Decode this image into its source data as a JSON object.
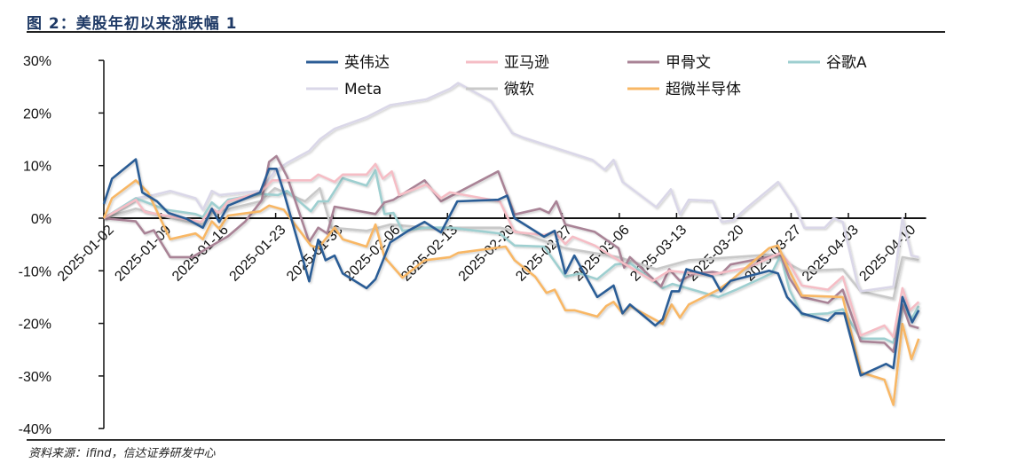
{
  "title": "图 2：美股年初以来涨跌幅 1",
  "source": "资料来源：ifind，信达证券研发中心",
  "chart_data": {
    "type": "line",
    "title": "美股年初以来涨跌幅",
    "xlabel": "",
    "ylabel": "",
    "x_unit": "days since 2025-01-02",
    "ylim": [
      -40,
      30
    ],
    "y_ticks": [
      30,
      20,
      10,
      0,
      -10,
      -20,
      -30,
      -40
    ],
    "y_tick_labels": [
      "30%",
      "20%",
      "10%",
      "0%",
      "-10%",
      "-20%",
      "-30%",
      "-40%"
    ],
    "x_ticks": [
      0,
      7,
      14,
      21,
      28,
      35,
      42,
      49,
      56,
      63,
      70,
      77,
      84,
      91,
      98
    ],
    "x_tick_labels": [
      "2025-01-02",
      "2025-01-09",
      "2025-01-16",
      "2025-01-23",
      "2025-01-30",
      "2025-02-06",
      "2025-02-13",
      "2025-02-20",
      "2025-02-27",
      "2025-03-06",
      "2025-03-13",
      "2025-03-20",
      "2025-03-27",
      "2025-04-03",
      "2025-04-10"
    ],
    "xlim": [
      0,
      100.5
    ],
    "grid": false,
    "legend_placement": "top",
    "series": [
      {
        "name": "微软",
        "color": "#C9C9C9",
        "x": [
          0,
          3.9,
          10.1,
          12.1,
          13.2,
          19.1,
          20.9,
          24.6,
          26.4,
          27.8,
          32.1,
          35,
          39.4,
          48.4,
          50.2,
          56.4,
          62.9,
          67.5,
          71.5,
          81.6,
          85.3,
          90.3,
          92.5,
          96.5,
          97.6,
          99.6
        ],
        "y": [
          0,
          1.8,
          -0.7,
          -1.2,
          1,
          3.2,
          5.7,
          3.2,
          5.7,
          -1.8,
          -2.4,
          -1.2,
          -1.8,
          -1.8,
          -2.4,
          -5.7,
          -7.4,
          -9.7,
          -8,
          -6.9,
          -10,
          -9.7,
          -13.9,
          -15.3,
          -7.4,
          -8
        ]
      },
      {
        "name": "Meta",
        "color": "#DAD7E8",
        "x": [
          0,
          3.9,
          6.1,
          8.1,
          11.2,
          12.1,
          13.2,
          14.1,
          19.1,
          20.9,
          22.4,
          25.1,
          26.4,
          28.2,
          32.1,
          35,
          39.4,
          42.3,
          43.3,
          47.3,
          49.9,
          51.3,
          59.7,
          61.2,
          62.3,
          63.4,
          67.5,
          69.3,
          70.4,
          71.5,
          74.4,
          75.5,
          76.9,
          78.7,
          82.4,
          84.5,
          85.6,
          88.1,
          89.2,
          90.3,
          92.1,
          92.5,
          96.5,
          97.6,
          98.7,
          99.6
        ],
        "y": [
          0,
          3.8,
          4.4,
          5.2,
          3.8,
          1.6,
          5.2,
          4.4,
          5.2,
          8.9,
          10.5,
          12.8,
          15,
          17,
          19.2,
          21.5,
          22.6,
          24.6,
          25.7,
          22.3,
          16.2,
          15.3,
          11.1,
          9.2,
          11.1,
          6.9,
          2.1,
          5.5,
          0.7,
          3.5,
          3.3,
          -0.7,
          -0.4,
          2.1,
          6.9,
          2.1,
          -1.8,
          -1.8,
          0,
          -0.7,
          -12.5,
          -13.9,
          -13,
          0,
          -7.1,
          -7.4
        ]
      },
      {
        "name": "谷歌A",
        "color": "#9ECFD0",
        "x": [
          0,
          3.9,
          7.6,
          11.2,
          12.1,
          13.2,
          14.1,
          15.2,
          19.1,
          21.3,
          22.4,
          25.3,
          26.2,
          27.4,
          29.2,
          32.1,
          33.2,
          34.3,
          35.4,
          36.5,
          39.4,
          42.3,
          48.4,
          50.2,
          53.8,
          56.4,
          58.2,
          60.3,
          62.5,
          64.3,
          68.3,
          69.5,
          75.1,
          77.3,
          81.6,
          82.7,
          83.8,
          85.3,
          88.5,
          90.3,
          92.5,
          95.4,
          96.5,
          97.6,
          98.7,
          99.6
        ],
        "y": [
          0,
          3.8,
          1.6,
          0.8,
          0.2,
          3,
          1.8,
          3.5,
          4.6,
          4.4,
          5.2,
          1.3,
          3.2,
          3.2,
          7.6,
          6.2,
          9.1,
          0.8,
          1,
          -2.4,
          -1.8,
          -1.8,
          -2.9,
          -5.2,
          -5.4,
          -11.1,
          -10.5,
          -11.6,
          -8.8,
          -8.5,
          -13.3,
          -12.5,
          -15,
          -13.6,
          -10.5,
          -7.1,
          -13.6,
          -18.4,
          -18.1,
          -17.3,
          -22.9,
          -22.9,
          -23.7,
          -16.4,
          -19.2,
          -16.7
        ]
      },
      {
        "name": "甲骨文",
        "color": "#A98396",
        "x": [
          0,
          3.9,
          5,
          6.1,
          8.1,
          10.8,
          15.2,
          17.3,
          19.3,
          20.2,
          21.1,
          22.4,
          25.1,
          26.2,
          27.3,
          28.2,
          33.2,
          34.3,
          35.4,
          39.2,
          41.2,
          48.2,
          50.2,
          53.3,
          54.4,
          55.3,
          56.4,
          60,
          62.9,
          63.6,
          64.3,
          68.1,
          69.1,
          70.4,
          72.3,
          74.4,
          75.5,
          76.6,
          80.2,
          82.7,
          83.8,
          85.3,
          88.5,
          90.3,
          92.5,
          95.4,
          96.5,
          97.6,
          98.5,
          99.6
        ],
        "y": [
          0,
          -0.6,
          -2.9,
          -2.3,
          -7.4,
          -7.4,
          -3.4,
          -0.6,
          3.4,
          10.7,
          11.8,
          7.9,
          -4.5,
          -1.8,
          -2.9,
          2.2,
          0.8,
          3,
          3.5,
          7.2,
          3.2,
          8.9,
          0.7,
          1.8,
          1,
          3.2,
          -1.2,
          -2.6,
          -5.7,
          -9.4,
          -7.4,
          -13,
          -9.7,
          -11.9,
          -10.5,
          -10.2,
          -10.5,
          -8.8,
          -7.7,
          -6.9,
          -11.4,
          -15,
          -16.1,
          -13.6,
          -23.4,
          -23.7,
          -25.4,
          -16.4,
          -20.4,
          -20.9
        ]
      },
      {
        "name": "亚马逊",
        "color": "#F5BDC5",
        "x": [
          0,
          3.9,
          5,
          11.9,
          13.2,
          14.1,
          15.2,
          19.1,
          20.6,
          25.3,
          26.2,
          28.2,
          29.2,
          32.1,
          33.2,
          34.1,
          35.2,
          36.1,
          39.4,
          41.2,
          42.3,
          48.4,
          50.2,
          53.8,
          55.1,
          56.4,
          57.3,
          60,
          62.9,
          67.1,
          69.1,
          74,
          78.7,
          82.7,
          83.8,
          85.3,
          88.5,
          90.3,
          92.5,
          95.4,
          96.5,
          97.6,
          98.5,
          99.6
        ],
        "y": [
          0,
          3.5,
          1.2,
          -0.7,
          1.8,
          1,
          3.2,
          4.9,
          7.2,
          7.2,
          8.3,
          6.9,
          8.3,
          8.3,
          10.3,
          7.5,
          8.9,
          4.4,
          6.4,
          3.8,
          4.9,
          3.2,
          -2.6,
          -3.2,
          -2.6,
          -4.9,
          -3.5,
          -5.2,
          -8,
          -11.9,
          -10,
          -10.8,
          -9.4,
          -6.6,
          -8.6,
          -12.8,
          -13.6,
          -11.1,
          -22.3,
          -20.4,
          -22.6,
          -13.3,
          -17.5,
          -15.9
        ]
      },
      {
        "name": "超微半导体",
        "color": "#F8B765",
        "x": [
          0,
          1,
          3.9,
          5.4,
          8.1,
          11.2,
          12.1,
          13.2,
          14.1,
          15.2,
          19.1,
          20.2,
          22,
          25.3,
          26.2,
          28.2,
          29.2,
          32.1,
          33.2,
          34.3,
          36.5,
          39.2,
          42.3,
          43.3,
          49.1,
          50.2,
          52.7,
          54.1,
          55.1,
          56.4,
          57.5,
          60.3,
          61.4,
          62.3,
          63.4,
          64.3,
          68.3,
          69.4,
          70.4,
          71.5,
          75.1,
          76.6,
          81.3,
          82.4,
          83.5,
          85.3,
          90.3,
          92.5,
          95.4,
          96.5,
          97.6,
          98.7,
          99.6
        ],
        "y": [
          0,
          3.8,
          7.2,
          4.9,
          -4,
          -2.9,
          -4,
          -0.6,
          -2,
          0.5,
          1.3,
          2.4,
          1.6,
          -5.2,
          -5.7,
          -1.8,
          -4,
          -5.4,
          -1.2,
          -7.4,
          -11.3,
          -8,
          -7.4,
          -6.6,
          -5.4,
          -8,
          -11.1,
          -14.2,
          -13.6,
          -17.5,
          -17.5,
          -18.7,
          -16.7,
          -15.9,
          -18.1,
          -16.7,
          -20.1,
          -16.4,
          -18.9,
          -16.4,
          -13.6,
          -11.9,
          -5.7,
          -5.2,
          -9.1,
          -14.7,
          -15,
          -29.3,
          -30.7,
          -35.5,
          -20.1,
          -26.8,
          -22.9
        ]
      },
      {
        "name": "英伟达",
        "color": "#2C5D96",
        "x": [
          0,
          1,
          3.9,
          4.7,
          6.5,
          7.9,
          10.1,
          12.1,
          13.2,
          14.1,
          15.2,
          19.1,
          20.2,
          21.1,
          22,
          25.1,
          26.2,
          27.1,
          28.2,
          29.2,
          32.1,
          33.2,
          35,
          37.2,
          39.2,
          41.2,
          43.2,
          48.2,
          49.3,
          50.2,
          53.8,
          55.1,
          56.4,
          57.5,
          60.3,
          62.3,
          63.4,
          64.3,
          67.4,
          68.3,
          69.4,
          70.3,
          71.2,
          74.4,
          75.4,
          76.6,
          81.3,
          82.4,
          83.5,
          85.3,
          88.5,
          89.4,
          90.5,
          92.5,
          95.6,
          96.5,
          97.6,
          98.8,
          99.6
        ],
        "y": [
          2.7,
          7.5,
          11.2,
          4.9,
          3.2,
          1,
          -0.1,
          -1.8,
          1.8,
          -0.7,
          2.4,
          4.9,
          9.4,
          9.4,
          4.9,
          -12,
          -4.1,
          -8,
          -7.1,
          -10.5,
          -13.3,
          -11.6,
          -4.6,
          -2.4,
          -0.7,
          -2.7,
          3.2,
          3.5,
          4.3,
          0,
          -3.5,
          -2.4,
          -10.5,
          -7.1,
          -15,
          -12.8,
          -18.1,
          -16.4,
          -20.4,
          -19.2,
          -13.9,
          -13.9,
          -9.7,
          -11.1,
          -13.9,
          -11.9,
          -10,
          -10.5,
          -15,
          -18.1,
          -19.5,
          -18.1,
          -18.1,
          -29.9,
          -27.7,
          -28.5,
          -15,
          -19.8,
          -17.5
        ]
      }
    ],
    "legend_order": [
      "英伟达",
      "亚马逊",
      "甲骨文",
      "谷歌A",
      "Meta",
      "微软",
      "超微半导体"
    ]
  }
}
